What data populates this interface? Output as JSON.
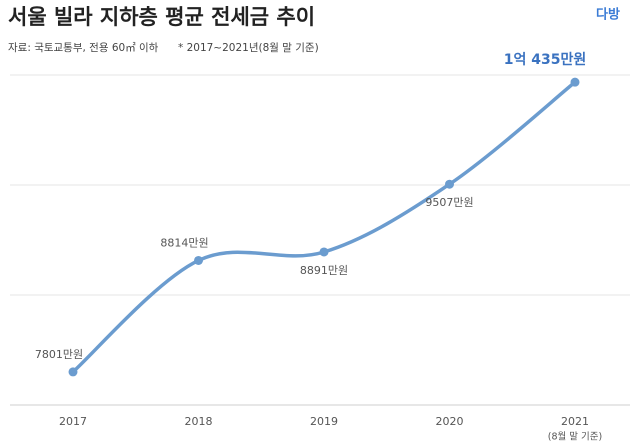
{
  "chart_data": {
    "type": "line",
    "title": "서울 빌라 지하층 평균 전세금 추이",
    "source": "자료: 국토교통부, 전용 60㎡ 이하",
    "note": "* 2017~2021년(8월 말 기준)",
    "logo": "다방",
    "categories": [
      "2017",
      "2018",
      "2019",
      "2020",
      "2021"
    ],
    "category_note": "(8월 말 기준)",
    "values": [
      7801,
      8814,
      8891,
      9507,
      10435
    ],
    "value_labels": [
      "7801만원",
      "8814만원",
      "8891만원",
      "9507만원",
      "1억 435만원"
    ],
    "color": "#6b9ccf",
    "ylim": [
      7500,
      10500
    ],
    "yticks": [
      7500,
      8500,
      9500,
      10500
    ],
    "grid": true
  }
}
